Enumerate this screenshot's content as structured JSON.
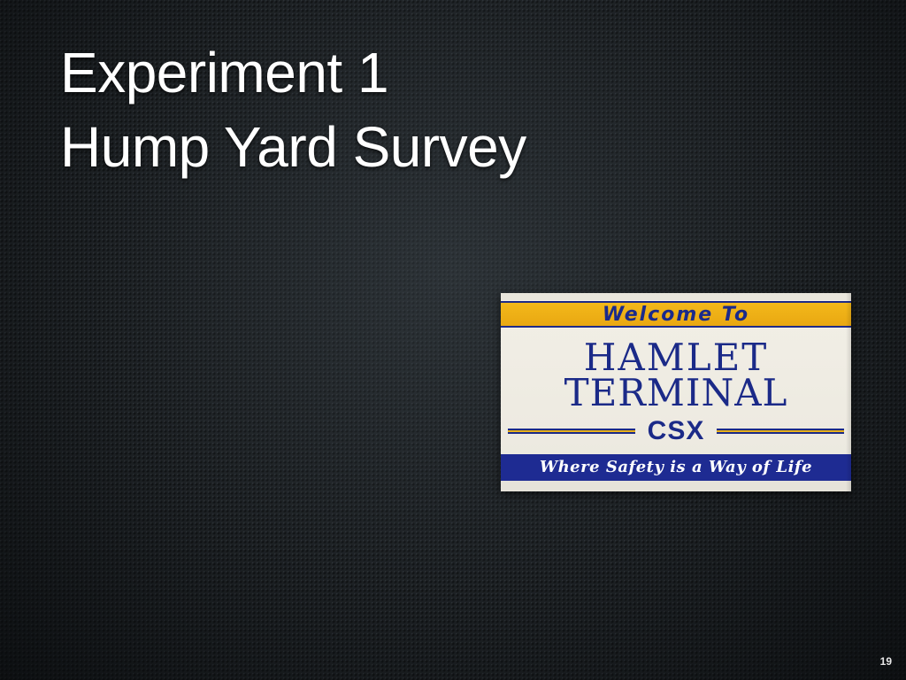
{
  "slide": {
    "title_line1": "Experiment 1",
    "title_line2": "Hump Yard Survey",
    "slide_number": "19"
  },
  "sign_photo": {
    "welcome": "Welcome To",
    "line1": "HAMLET",
    "line2": "TERMINAL",
    "brand": "CSX",
    "slogan": "Where Safety is a Way of Life",
    "colors": {
      "yellow": "#f3b81a",
      "blue": "#1e2b92",
      "panel": "#f2efe6"
    }
  },
  "colors": {
    "background": "#1d2124",
    "title_text": "#ffffff"
  }
}
